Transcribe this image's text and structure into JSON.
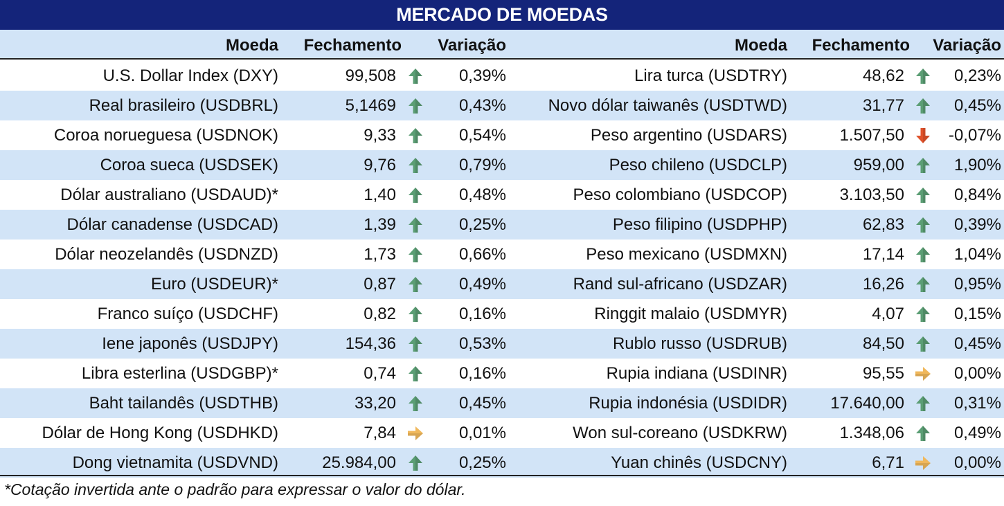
{
  "title": "MERCADO DE MOEDAS",
  "headers": {
    "currency": "Moeda",
    "close": "Fechamento",
    "change": "Variação"
  },
  "left_table": [
    {
      "name": "U.S. Dollar Index (DXY)",
      "close": "99,508",
      "trend": "up",
      "change": "0,39%"
    },
    {
      "name": "Real brasileiro (USDBRL)",
      "close": "5,1469",
      "trend": "up",
      "change": "0,43%"
    },
    {
      "name": "Coroa norueguesa (USDNOK)",
      "close": "9,33",
      "trend": "up",
      "change": "0,54%"
    },
    {
      "name": "Coroa sueca (USDSEK)",
      "close": "9,76",
      "trend": "up",
      "change": "0,79%"
    },
    {
      "name": "Dólar australiano (USDAUD)*",
      "close": "1,40",
      "trend": "up",
      "change": "0,48%"
    },
    {
      "name": "Dólar canadense (USDCAD)",
      "close": "1,39",
      "trend": "up",
      "change": "0,25%"
    },
    {
      "name": "Dólar neozelandês (USDNZD)",
      "close": "1,73",
      "trend": "up",
      "change": "0,66%"
    },
    {
      "name": "Euro (USDEUR)*",
      "close": "0,87",
      "trend": "up",
      "change": "0,49%"
    },
    {
      "name": "Franco suíço (USDCHF)",
      "close": "0,82",
      "trend": "up",
      "change": "0,16%"
    },
    {
      "name": "Iene japonês (USDJPY)",
      "close": "154,36",
      "trend": "up",
      "change": "0,53%"
    },
    {
      "name": "Libra esterlina (USDGBP)*",
      "close": "0,74",
      "trend": "up",
      "change": "0,16%"
    },
    {
      "name": "Baht tailandês (USDTHB)",
      "close": "33,20",
      "trend": "up",
      "change": "0,45%"
    },
    {
      "name": "Dólar de Hong Kong (USDHKD)",
      "close": "7,84",
      "trend": "flat",
      "change": "0,01%"
    },
    {
      "name": "Dong vietnamita (USDVND)",
      "close": "25.984,00",
      "trend": "up",
      "change": "0,25%"
    }
  ],
  "right_table": [
    {
      "name": "Lira turca (USDTRY)",
      "close": "48,62",
      "trend": "up",
      "change": "0,23%"
    },
    {
      "name": "Novo dólar taiwanês (USDTWD)",
      "close": "31,77",
      "trend": "up",
      "change": "0,45%"
    },
    {
      "name": "Peso argentino (USDARS)",
      "close": "1.507,50",
      "trend": "down",
      "change": "-0,07%"
    },
    {
      "name": "Peso chileno (USDCLP)",
      "close": "959,00",
      "trend": "up",
      "change": "1,90%"
    },
    {
      "name": "Peso colombiano (USDCOP)",
      "close": "3.103,50",
      "trend": "up",
      "change": "0,84%"
    },
    {
      "name": "Peso filipino (USDPHP)",
      "close": "62,83",
      "trend": "up",
      "change": "0,39%"
    },
    {
      "name": "Peso mexicano (USDMXN)",
      "close": "17,14",
      "trend": "up",
      "change": "1,04%"
    },
    {
      "name": "Rand sul-africano (USDZAR)",
      "close": "16,26",
      "trend": "up",
      "change": "0,95%"
    },
    {
      "name": "Ringgit malaio (USDMYR)",
      "close": "4,07",
      "trend": "up",
      "change": "0,15%"
    },
    {
      "name": "Rublo russo (USDRUB)",
      "close": "84,50",
      "trend": "up",
      "change": "0,45%"
    },
    {
      "name": "Rupia indiana (USDINR)",
      "close": "95,55",
      "trend": "flat",
      "change": "0,00%"
    },
    {
      "name": "Rupia indonésia (USDIDR)",
      "close": "17.640,00",
      "trend": "up",
      "change": "0,31%"
    },
    {
      "name": "Won sul-coreano (USDKRW)",
      "close": "1.348,06",
      "trend": "up",
      "change": "0,49%"
    },
    {
      "name": "Yuan chinês (USDCNY)",
      "close": "6,71",
      "trend": "flat",
      "change": "0,00%"
    }
  ],
  "trend_icons": {
    "up": {
      "icon": "arrow-up-icon",
      "color": "#5b9e74"
    },
    "down": {
      "icon": "arrow-down-icon",
      "color": "#e0522b"
    },
    "flat": {
      "icon": "arrow-right-icon",
      "color": "#f0b85c"
    }
  },
  "footnote": "*Cotação invertida ante o padrão para expressar o valor do dólar."
}
